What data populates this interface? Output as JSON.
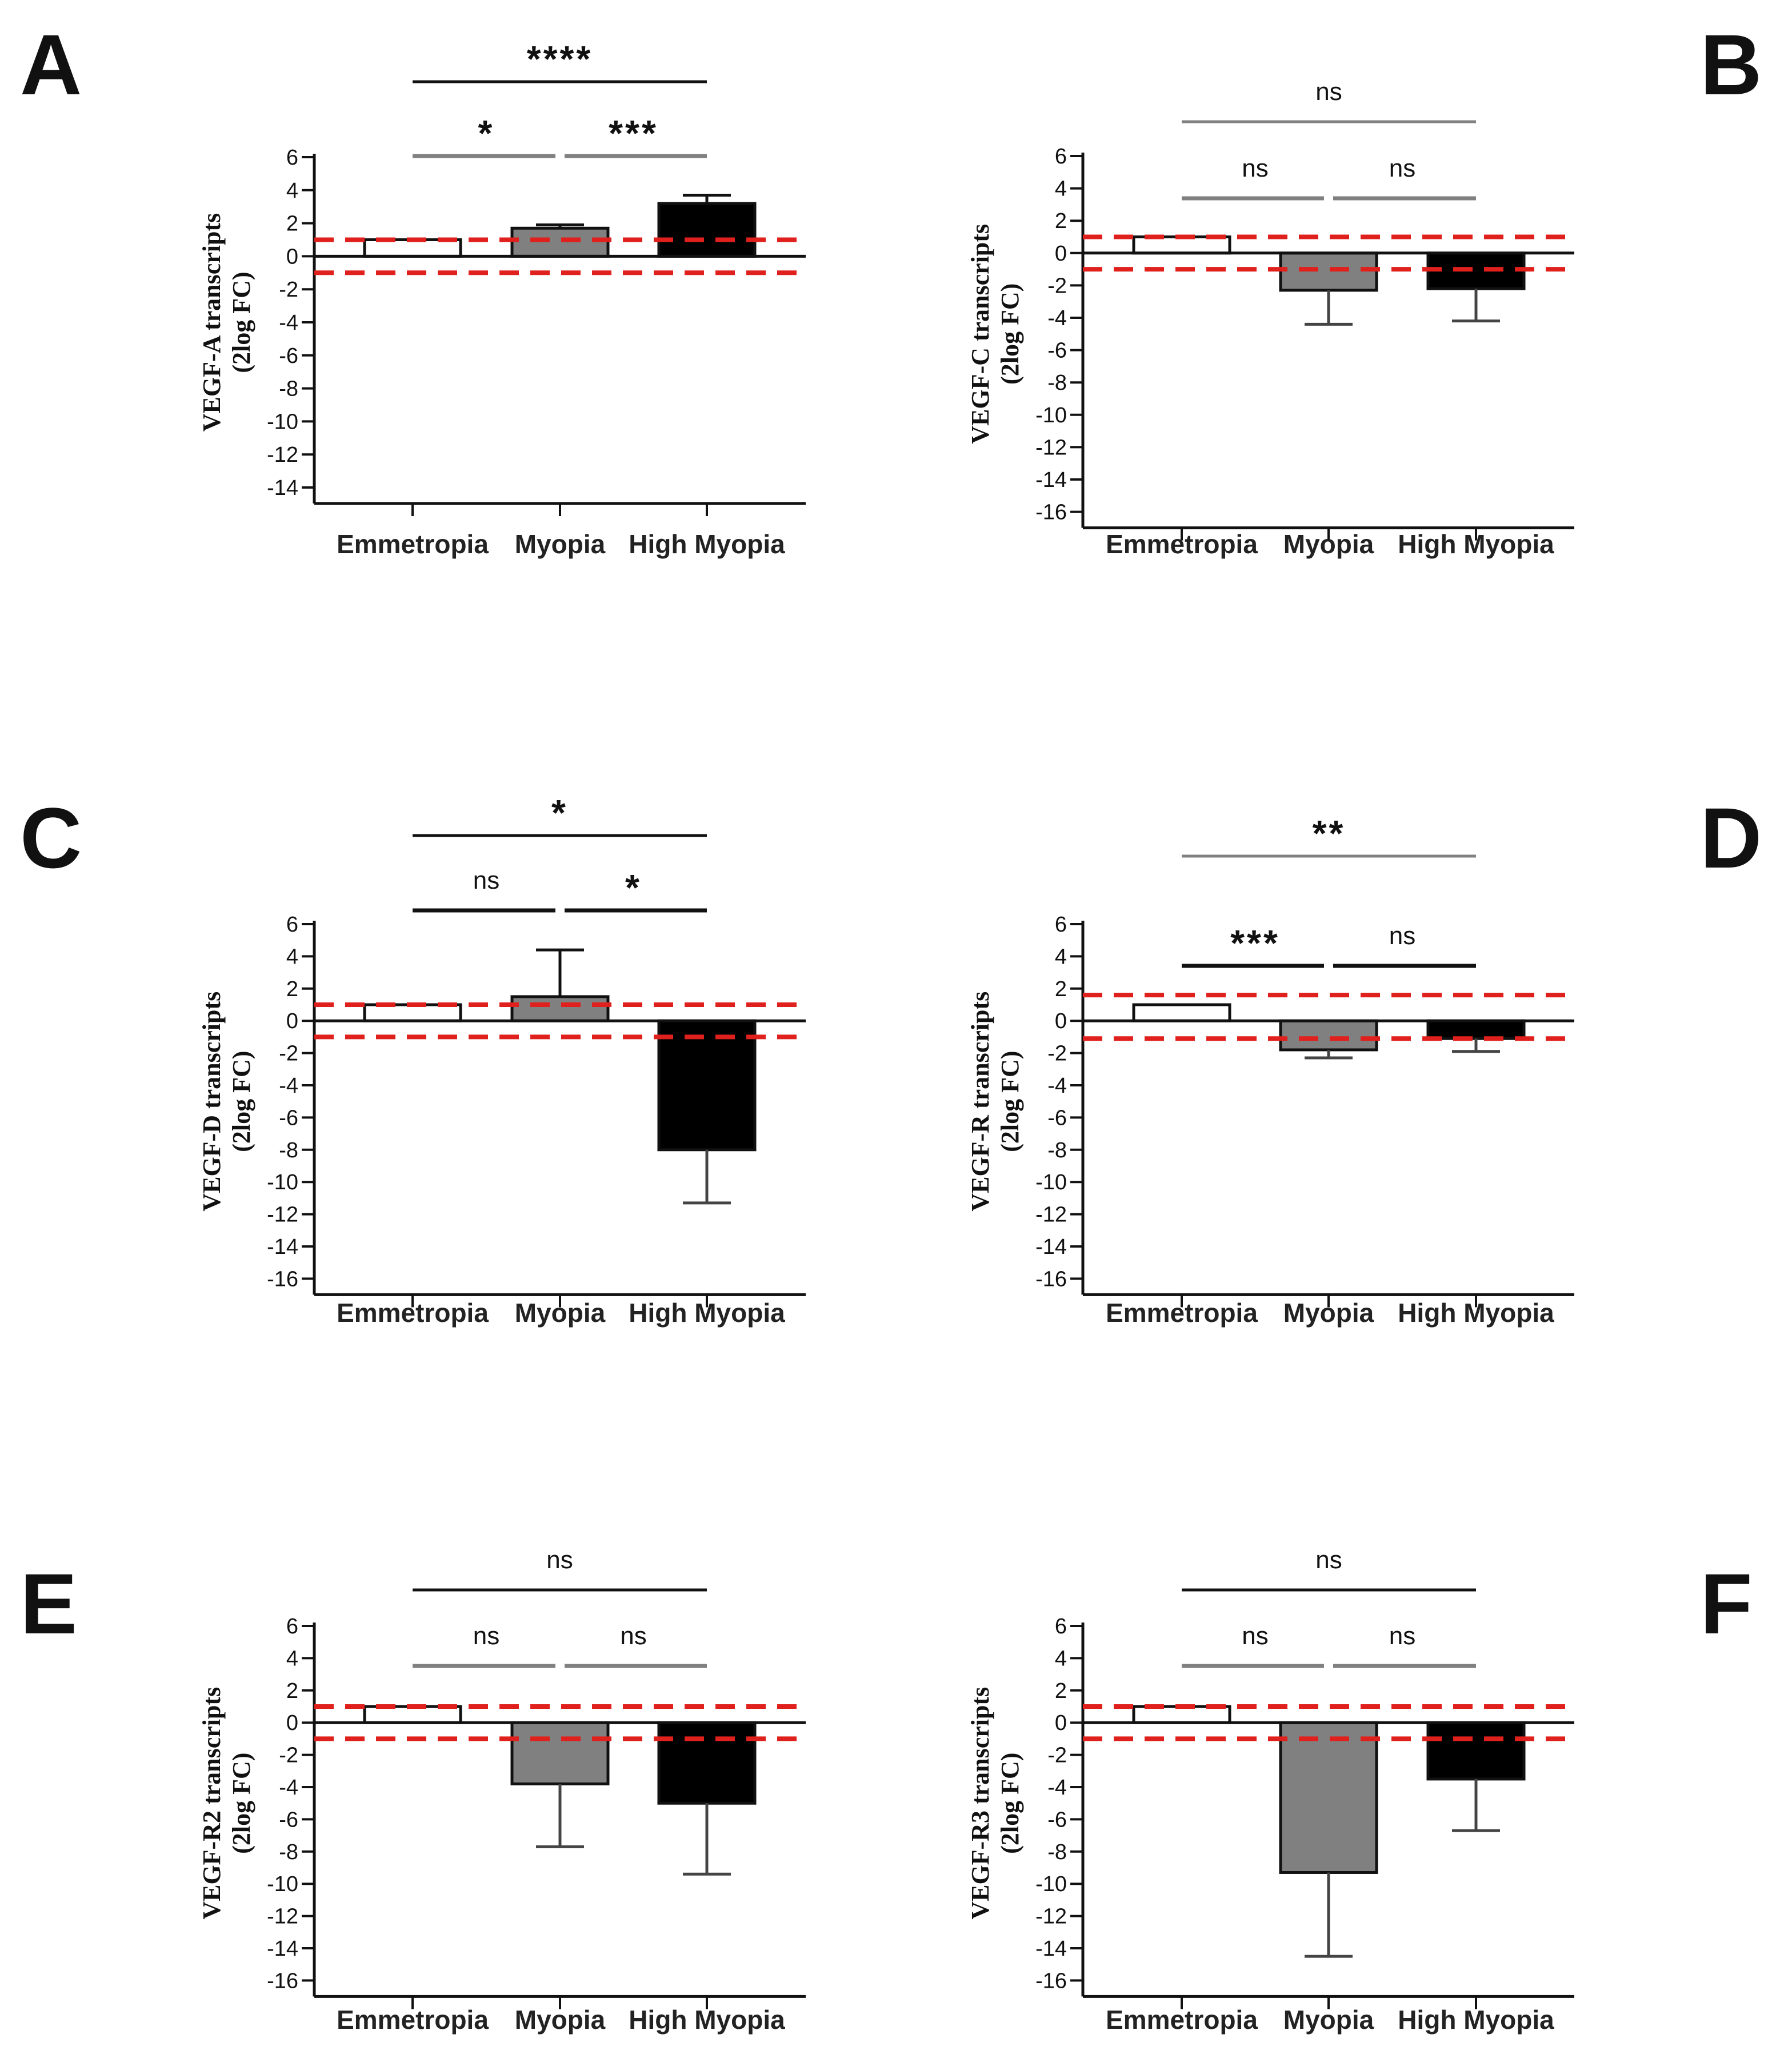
{
  "chart_data": [
    {
      "type": "bar",
      "panel": "A",
      "ylabel": [
        "VEGF-A transcripts",
        "(2log FC)"
      ],
      "categories": [
        "Emmetropia",
        "Myopia",
        "High Myopia"
      ],
      "values": [
        1.0,
        1.7,
        3.2
      ],
      "error_plus": [
        0.0,
        0.2,
        0.5
      ],
      "error_minus": [
        0,
        0,
        0
      ],
      "ylim": [
        -14,
        6
      ],
      "yticks": [
        6,
        4,
        2,
        0,
        -2,
        -4,
        -6,
        -8,
        -10,
        -12,
        -14
      ],
      "threshold_lines": [
        1,
        -1
      ],
      "significance": {
        "top": "****",
        "left": "*",
        "right": "***"
      }
    },
    {
      "type": "bar",
      "panel": "B",
      "ylabel": [
        "VEGF-C transcripts",
        "(2log FC)"
      ],
      "categories": [
        "Emmetropia",
        "Myopia",
        "High Myopia"
      ],
      "values": [
        1.0,
        -2.3,
        -2.2
      ],
      "error_plus": [
        0,
        0,
        0
      ],
      "error_minus": [
        0.0,
        2.1,
        2.0
      ],
      "ylim": [
        -16,
        6
      ],
      "yticks": [
        6,
        4,
        2,
        0,
        -2,
        -4,
        -6,
        -8,
        -10,
        -12,
        -14,
        -16
      ],
      "threshold_lines": [
        1,
        -1
      ],
      "significance": {
        "top": "ns",
        "left": "ns",
        "right": "ns"
      }
    },
    {
      "type": "bar",
      "panel": "C",
      "ylabel": [
        "VEGF-D transcripts",
        "(2log FC)"
      ],
      "categories": [
        "Emmetropia",
        "Myopia",
        "High Myopia"
      ],
      "values": [
        1.0,
        1.5,
        -8.0
      ],
      "error_plus": [
        0.0,
        2.9,
        0
      ],
      "error_minus": [
        0,
        0,
        3.3
      ],
      "ylim": [
        -16,
        6
      ],
      "yticks": [
        6,
        4,
        2,
        0,
        -2,
        -4,
        -6,
        -8,
        -10,
        -12,
        -14,
        -16
      ],
      "threshold_lines": [
        1,
        -1
      ],
      "significance": {
        "top": "*",
        "left": "ns",
        "right": "*"
      }
    },
    {
      "type": "bar",
      "panel": "D",
      "ylabel": [
        "VEGF-R transcripts",
        "(2log FC)"
      ],
      "categories": [
        "Emmetropia",
        "Myopia",
        "High Myopia"
      ],
      "values": [
        1.0,
        -1.8,
        -1.1
      ],
      "error_plus": [
        0,
        0,
        0
      ],
      "error_minus": [
        0.0,
        0.5,
        0.8
      ],
      "ylim": [
        -16,
        6
      ],
      "yticks": [
        6,
        4,
        2,
        0,
        -2,
        -4,
        -6,
        -8,
        -10,
        -12,
        -14,
        -16
      ],
      "threshold_lines": [
        1.6,
        -1.1
      ],
      "significance": {
        "top": "**",
        "left": "***",
        "right": "ns"
      }
    },
    {
      "type": "bar",
      "panel": "E",
      "ylabel": [
        "VEGF-R2 transcripts",
        "(2log FC)"
      ],
      "categories": [
        "Emmetropia",
        "Myopia",
        "High Myopia"
      ],
      "values": [
        1.0,
        -3.8,
        -5.0
      ],
      "error_plus": [
        0,
        0,
        0
      ],
      "error_minus": [
        0.0,
        3.9,
        4.4
      ],
      "ylim": [
        -16,
        6
      ],
      "yticks": [
        6,
        4,
        2,
        0,
        -2,
        -4,
        -6,
        -8,
        -10,
        -12,
        -14,
        -16
      ],
      "threshold_lines": [
        1,
        -1
      ],
      "significance": {
        "top": "ns",
        "left": "ns",
        "right": "ns"
      }
    },
    {
      "type": "bar",
      "panel": "F",
      "ylabel": [
        "VEGF-R3 transcripts",
        "(2log FC)"
      ],
      "categories": [
        "Emmetropia",
        "Myopia",
        "High Myopia"
      ],
      "values": [
        1.0,
        -9.3,
        -3.5
      ],
      "error_plus": [
        0,
        0,
        0
      ],
      "error_minus": [
        0.0,
        5.2,
        3.2
      ],
      "ylim": [
        -16,
        6
      ],
      "yticks": [
        6,
        4,
        2,
        0,
        -2,
        -4,
        -6,
        -8,
        -10,
        -12,
        -14,
        -16
      ],
      "threshold_lines": [
        1,
        -1
      ],
      "significance": {
        "top": "ns",
        "left": "ns",
        "right": "ns"
      }
    }
  ],
  "colors": {
    "bars": [
      "#ffffff",
      "#808080",
      "#000000"
    ],
    "threshold": "#e0201c",
    "axis": "#111111",
    "bracket_gray": "#808080",
    "bracket_black": "#111111"
  }
}
